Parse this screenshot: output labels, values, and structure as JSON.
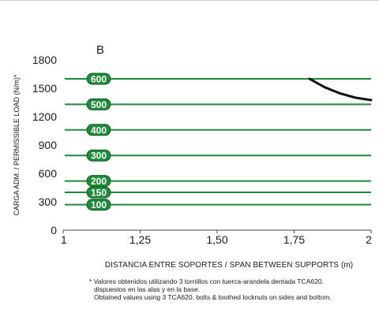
{
  "chart_data": {
    "type": "line",
    "panel_label": "B",
    "xlabel": "DISTANCIA ENTRE SOPORTES / SPAN BETWEEN SUPPORTS (m)",
    "ylabel": "CARGA ADM. / PERMISSIBLE LOAD (N/m)*",
    "x_ticks": [
      {
        "value": 1,
        "label": "1"
      },
      {
        "value": 1.25,
        "label": "1,25"
      },
      {
        "value": 1.5,
        "label": "1,50"
      },
      {
        "value": 1.75,
        "label": "1,75"
      },
      {
        "value": 2,
        "label": "2"
      }
    ],
    "y_ticks": [
      {
        "value": 0,
        "label": "0"
      },
      {
        "value": 300,
        "label": "300"
      },
      {
        "value": 600,
        "label": "600"
      },
      {
        "value": 900,
        "label": "900"
      },
      {
        "value": 1200,
        "label": "1200"
      },
      {
        "value": 1500,
        "label": "1500"
      },
      {
        "value": 1800,
        "label": "1800"
      }
    ],
    "xlim": [
      1,
      2
    ],
    "ylim": [
      0,
      1800
    ],
    "grid": false,
    "levels": [
      {
        "label": "100",
        "value": 270
      },
      {
        "label": "150",
        "value": 400
      },
      {
        "label": "200",
        "value": 520
      },
      {
        "label": "300",
        "value": 790
      },
      {
        "label": "400",
        "value": 1060
      },
      {
        "label": "500",
        "value": 1330
      },
      {
        "label": "600",
        "value": 1600
      }
    ],
    "limit_curve": {
      "x": [
        1.8,
        1.85,
        1.9,
        1.95,
        2.0
      ],
      "y": [
        1600,
        1510,
        1445,
        1400,
        1375
      ]
    },
    "colors": {
      "level_line": "#1e8a3a",
      "badge_fill": "#1e8a3a",
      "badge_stroke": "#0f5e22",
      "limit_curve": "#111111",
      "axis": "#444444"
    }
  },
  "footnote": {
    "line1": "* Valores obtenidos utilizando 3 tornillos con tuerca-arandela dentada TCA620.",
    "line2": "dispuestos en las alas y en la base.",
    "line3": "Obtained values using 3 TCA620. bolts & toothed locknuts on sides and bottom."
  }
}
